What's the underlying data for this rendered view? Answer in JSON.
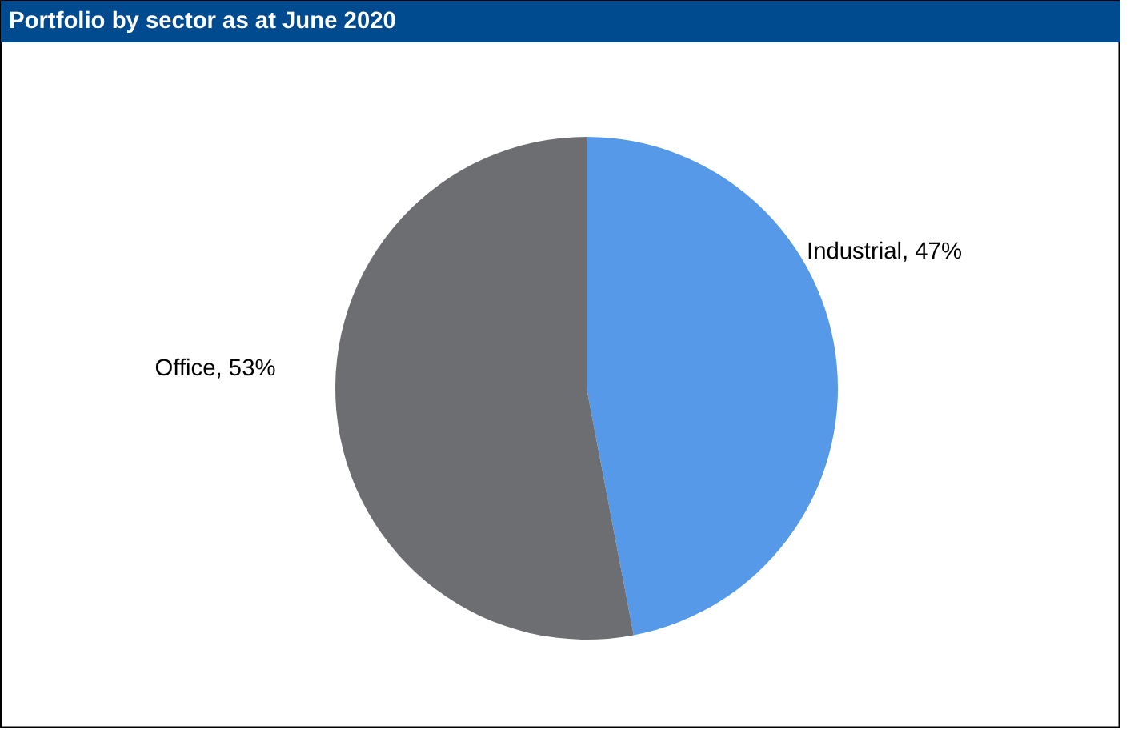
{
  "chart_data": {
    "type": "pie",
    "title": "Portfolio by sector as at June 2020",
    "categories": [
      "Industrial",
      "Office"
    ],
    "values": [
      47,
      53
    ],
    "colors": [
      "#5599e8",
      "#6d6e71"
    ],
    "value_labels": [
      "47%",
      "53%"
    ]
  }
}
